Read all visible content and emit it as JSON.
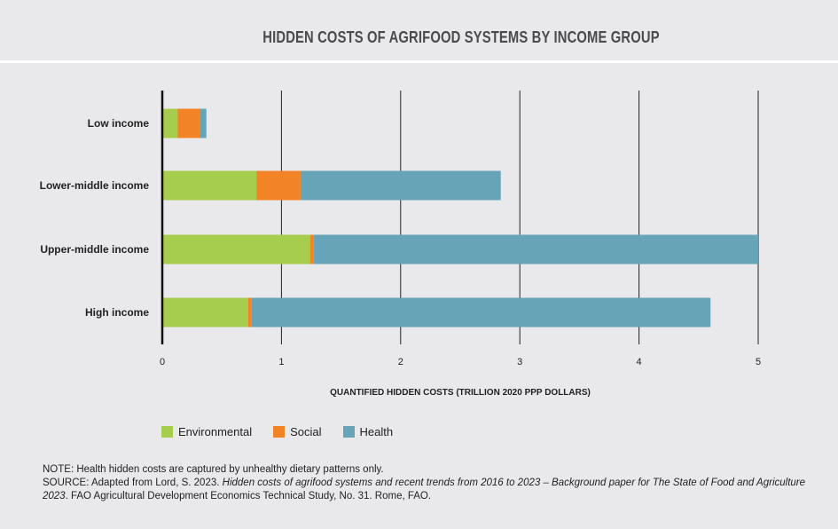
{
  "chart_data": {
    "type": "bar",
    "orientation": "horizontal",
    "stacked": true,
    "title": "HIDDEN COSTS OF AGRIFOOD SYSTEMS BY INCOME GROUP",
    "xlabel": "QUANTIFIED HIDDEN COSTS (TRILLION 2020 PPP DOLLARS)",
    "ylabel": "",
    "xlim": [
      0,
      5
    ],
    "xticks": [
      "0",
      "1",
      "2",
      "3",
      "4",
      "5"
    ],
    "grid": "vertical",
    "legend_placement": "bottom-left",
    "categories": [
      "Low income",
      "Lower-middle income",
      "Upper-middle income",
      "High income"
    ],
    "series": [
      {
        "name": "Environmental",
        "color": "#a6cd4b",
        "values": [
          0.13,
          0.79,
          1.24,
          0.72
        ]
      },
      {
        "name": "Social",
        "color": "#f28326",
        "values": [
          0.19,
          0.37,
          0.03,
          0.03
        ]
      },
      {
        "name": "Health",
        "color": "#68a4b8",
        "values": [
          0.05,
          1.68,
          3.73,
          3.85
        ]
      }
    ]
  },
  "notes": {
    "note": "NOTE: Health hidden costs are captured by unhealthy dietary patterns only.",
    "source_prefix": "SOURCE: Adapted from Lord, S. 2023. ",
    "source_title": "Hidden costs of agrifood systems and recent trends from 2016 to 2023 – Background paper for The State of Food and Agriculture 2023",
    "source_suffix": ". FAO Agricultural Development Economics Technical Study, No. 31. Rome, FAO."
  }
}
